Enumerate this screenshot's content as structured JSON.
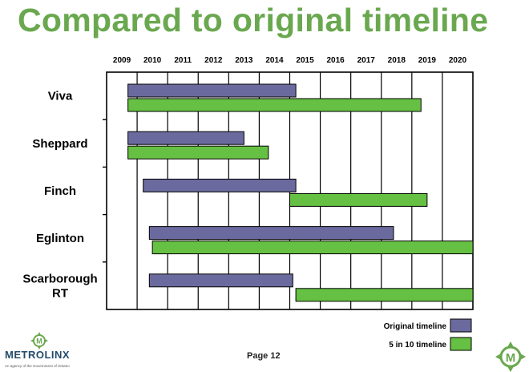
{
  "slide": {
    "title": "Compared to original timeline",
    "page_label": "Page 12",
    "brand": "METROLINX",
    "tagline": "An agency of the Government of Ontario",
    "logo_glyph": "M",
    "accent_color": "#6aa84f"
  },
  "chart_data": {
    "type": "gantt",
    "years": [
      "2009",
      "2010",
      "2011",
      "2012",
      "2013",
      "2014",
      "2015",
      "2016",
      "2017",
      "2018",
      "2019",
      "2020"
    ],
    "xlim": [
      2009,
      2021
    ],
    "legend_position": "bottom-right",
    "series": [
      {
        "name": "Original timeline",
        "color": "#6b6a9e"
      },
      {
        "name": "5 in 10 timeline",
        "color": "#66c043"
      }
    ],
    "projects": [
      {
        "label": "Viva",
        "original": [
          2009.7,
          2015.2
        ],
        "five_in_ten": [
          2009.7,
          2019.3
        ]
      },
      {
        "label": "Sheppard",
        "original": [
          2009.7,
          2013.5
        ],
        "five_in_ten": [
          2009.7,
          2014.3
        ]
      },
      {
        "label": "Finch",
        "original": [
          2010.2,
          2015.2
        ],
        "five_in_ten": [
          2015.0,
          2019.5
        ]
      },
      {
        "label": "Eglinton",
        "original": [
          2010.4,
          2018.4
        ],
        "five_in_ten": [
          2010.5,
          2021.0
        ]
      },
      {
        "label": "Scarborough\nRT",
        "original": [
          2010.4,
          2015.1
        ],
        "five_in_ten": [
          2015.2,
          2021.0
        ]
      }
    ]
  }
}
